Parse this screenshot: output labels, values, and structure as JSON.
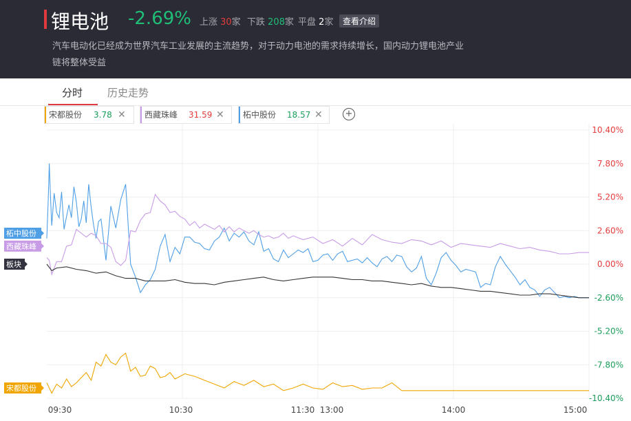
{
  "header": {
    "title": "锂电池",
    "change_pct": "-2.69%",
    "up_label": "上涨",
    "up_count": "30",
    "down_label": "下跌",
    "down_count": "208",
    "flat_label": "平盘",
    "flat_count": "2",
    "unit": "家",
    "intro_button": "查看介绍",
    "description": "汽车电动化已经成为世界汽车工业发展的主流趋势，对于动力电池的需求持续增长，国内动力锂电池产业链将整体受益"
  },
  "tabs": [
    {
      "label": "分时",
      "active": true
    },
    {
      "label": "历史走势",
      "active": false
    }
  ],
  "stocks": [
    {
      "name": "宋都股份",
      "value": "3.78",
      "color": "#f0a500",
      "value_color": "#1a9e5a"
    },
    {
      "name": "西藏珠峰",
      "value": "31.59",
      "color": "#c79be6",
      "value_color": "#e63b3b"
    },
    {
      "name": "柘中股份",
      "value": "18.57",
      "color": "#4f9fe6",
      "value_color": "#1a9e5a"
    }
  ],
  "add_icon": "plus-circle-icon",
  "close_icon": "close-icon",
  "chart_data": {
    "type": "line",
    "y_ticks": [
      "10.40%",
      "7.80%",
      "5.20%",
      "2.60%",
      "0.00%",
      "-2.60%",
      "-5.20%",
      "-7.80%",
      "-10.40%"
    ],
    "y_tick_colors": [
      "#e63b3b",
      "#e63b3b",
      "#e63b3b",
      "#e63b3b",
      "#e63b3b",
      "#1a9e5a",
      "#1a9e5a",
      "#1a9e5a",
      "#1a9e5a"
    ],
    "ylim": [
      -10.4,
      10.4
    ],
    "x_ticks": [
      "09:30",
      "10:30",
      "11:30",
      "13:00",
      "14:00",
      "15:00"
    ],
    "series": [
      {
        "name": "柘中股份",
        "color": "#4f9fe6",
        "x": [
          0,
          3,
          5,
          8,
          10,
          15,
          20,
          25,
          30,
          35,
          40,
          45,
          50,
          55,
          60,
          65,
          70,
          75,
          80,
          85,
          90,
          95,
          100,
          105,
          110,
          120,
          130,
          140,
          150,
          160,
          170,
          180,
          190,
          200,
          210,
          220,
          230,
          240,
          250,
          260,
          270,
          280,
          290,
          300,
          310,
          320,
          330,
          340,
          350,
          360,
          370,
          380,
          390,
          400,
          410,
          420,
          430,
          440,
          450,
          460,
          470,
          480,
          490,
          500,
          510,
          520,
          530,
          540,
          550,
          560,
          570,
          580,
          590,
          600,
          610,
          620,
          630,
          640,
          650,
          660,
          670,
          680,
          690,
          700,
          710,
          720,
          730,
          740,
          750,
          760,
          770,
          780,
          790,
          800,
          810,
          820,
          830,
          840,
          850,
          860,
          870,
          880,
          890,
          900,
          910,
          920,
          930,
          940,
          950,
          960,
          970,
          980,
          990,
          1000,
          1010,
          1020,
          1030,
          1040,
          1050,
          1060,
          1070,
          1080,
          1090,
          1100
        ],
        "y": [
          2.0,
          5.0,
          7.8,
          4.8,
          3.0,
          5.5,
          4.0,
          3.6,
          5.6,
          2.7,
          3.7,
          4.6,
          3.6,
          6.0,
          4.8,
          2.9,
          3.5,
          4.9,
          3.2,
          6.2,
          4.4,
          3.0,
          2.0,
          3.3,
          3.5,
          0.3,
          4.5,
          2.8,
          5.0,
          6.2,
          0.0,
          -1.0,
          -2.2,
          -1.6,
          -1.2,
          -0.4,
          1.4,
          2.3,
          0.2,
          1.3,
          0.8,
          2.1,
          2.1,
          1.7,
          1.6,
          1.2,
          1.1,
          1.8,
          2.1,
          2.8,
          1.8,
          2.4,
          2.1,
          2.5,
          1.8,
          1.5,
          2.5,
          1.0,
          1.2,
          0.4,
          0.2,
          1.1,
          0.5,
          0.8,
          1.1,
          0.9,
          1.2,
          0.2,
          0.3,
          0.7,
          0.8,
          0.3,
          0.8,
          1.0,
          0.2,
          0.3,
          0.4,
          0.1,
          0.5,
          0.1,
          -0.2,
          0.4,
          0.6,
          0.2,
          0.7,
          0.6,
          -0.2,
          -0.6,
          -0.3,
          0.6,
          -1.1,
          -1.6,
          -0.7,
          0.5,
          0.9,
          0.3,
          -0.1,
          -0.6,
          -0.4,
          -0.5,
          -0.6,
          -1.8,
          -1.5,
          -1.6,
          -0.2,
          0.6,
          0.0,
          -0.5,
          -1.0,
          -1.6,
          -1.2,
          -1.8,
          -2.0,
          -2.5,
          -2.0,
          -1.8,
          -2.2,
          -2.6,
          -2.5,
          -2.6,
          -2.5,
          -2.6,
          -2.6,
          -2.6
        ]
      },
      {
        "name": "西藏珠峰",
        "color": "#c79be6",
        "x": [
          0,
          5,
          10,
          20,
          30,
          40,
          50,
          60,
          70,
          80,
          90,
          100,
          110,
          120,
          130,
          140,
          150,
          160,
          170,
          180,
          190,
          200,
          210,
          220,
          230,
          240,
          250,
          260,
          270,
          280,
          290,
          300,
          310,
          320,
          330,
          340,
          350,
          360,
          370,
          380,
          390,
          400,
          410,
          420,
          430,
          440,
          450,
          460,
          470,
          480,
          490,
          500,
          520,
          540,
          560,
          580,
          600,
          620,
          640,
          660,
          680,
          700,
          720,
          740,
          760,
          780,
          800,
          820,
          840,
          860,
          880,
          900,
          920,
          940,
          960,
          980,
          1000,
          1020,
          1040,
          1060,
          1080,
          1100
        ],
        "y": [
          0.5,
          0.3,
          -0.8,
          0.2,
          0.2,
          1.4,
          1.5,
          2.7,
          2.4,
          2.1,
          2.4,
          2.2,
          1.6,
          1.6,
          1.3,
          0.2,
          -0.1,
          0.3,
          2.6,
          2.5,
          3.4,
          3.9,
          4.0,
          5.4,
          4.9,
          4.6,
          4.0,
          4.1,
          3.7,
          3.5,
          3.0,
          3.3,
          2.8,
          3.1,
          2.9,
          2.7,
          3.0,
          2.5,
          2.9,
          2.5,
          2.8,
          2.6,
          2.4,
          2.6,
          2.3,
          2.1,
          2.2,
          2.0,
          2.1,
          2.4,
          2.0,
          2.2,
          1.9,
          2.1,
          1.6,
          1.9,
          1.4,
          2.0,
          1.5,
          2.3,
          1.9,
          1.7,
          1.6,
          1.9,
          1.8,
          1.5,
          1.8,
          1.3,
          1.6,
          1.5,
          1.4,
          1.3,
          1.6,
          1.4,
          1.2,
          1.3,
          1.1,
          1.0,
          0.8,
          0.8,
          0.9,
          0.9
        ]
      },
      {
        "name": "板块",
        "color": "#333333",
        "x": [
          0,
          10,
          20,
          40,
          60,
          80,
          100,
          120,
          140,
          160,
          180,
          200,
          220,
          240,
          260,
          280,
          300,
          320,
          340,
          360,
          380,
          400,
          420,
          440,
          460,
          480,
          500,
          520,
          540,
          560,
          580,
          600,
          620,
          640,
          660,
          680,
          700,
          720,
          740,
          760,
          780,
          800,
          820,
          840,
          860,
          880,
          900,
          920,
          940,
          960,
          980,
          1000,
          1020,
          1040,
          1060,
          1080,
          1100
        ],
        "y": [
          0.0,
          -0.5,
          -0.3,
          -0.2,
          -0.4,
          -0.5,
          -0.7,
          -0.6,
          -0.9,
          -1.1,
          -1.1,
          -1.3,
          -1.3,
          -1.3,
          -1.2,
          -1.4,
          -1.5,
          -1.5,
          -1.6,
          -1.4,
          -1.3,
          -1.2,
          -1.1,
          -1.0,
          -1.2,
          -1.3,
          -1.2,
          -1.1,
          -1.0,
          -1.0,
          -1.0,
          -1.1,
          -1.2,
          -1.2,
          -1.3,
          -1.3,
          -1.4,
          -1.5,
          -1.6,
          -1.5,
          -1.7,
          -1.8,
          -1.8,
          -1.9,
          -2.0,
          -2.1,
          -2.1,
          -2.2,
          -2.3,
          -2.4,
          -2.4,
          -2.3,
          -2.3,
          -2.4,
          -2.5,
          -2.6,
          -2.6
        ]
      },
      {
        "name": "宋都股份",
        "color": "#f0a500",
        "x": [
          0,
          10,
          20,
          30,
          40,
          50,
          60,
          70,
          80,
          90,
          100,
          110,
          120,
          130,
          140,
          150,
          160,
          170,
          180,
          190,
          200,
          210,
          220,
          230,
          240,
          250,
          260,
          280,
          300,
          320,
          340,
          360,
          380,
          400,
          420,
          440,
          460,
          480,
          500,
          520,
          540,
          560,
          580,
          600,
          620,
          640,
          660,
          680,
          700,
          720,
          740,
          760,
          780,
          800,
          820,
          840,
          860,
          880,
          900,
          940,
          980,
          1020,
          1060,
          1100
        ],
        "y": [
          -9.2,
          -10.0,
          -9.3,
          -9.6,
          -8.9,
          -9.5,
          -9.2,
          -8.8,
          -8.4,
          -9.0,
          -7.6,
          -7.9,
          -7.0,
          -7.6,
          -7.8,
          -7.2,
          -6.9,
          -8.3,
          -8.0,
          -8.7,
          -8.6,
          -7.9,
          -8.1,
          -8.8,
          -8.7,
          -8.4,
          -8.9,
          -8.5,
          -8.7,
          -9.0,
          -9.3,
          -9.6,
          -9.1,
          -9.4,
          -9.0,
          -9.5,
          -9.3,
          -9.8,
          -9.6,
          -9.3,
          -9.6,
          -9.7,
          -9.2,
          -9.5,
          -9.4,
          -9.7,
          -9.6,
          -9.6,
          -9.2,
          -9.8,
          -9.8,
          -9.8,
          -9.8,
          -9.8,
          -9.8,
          -9.8,
          -9.8,
          -9.8,
          -9.8,
          -9.8,
          -9.8,
          -9.8,
          -9.8,
          -9.8
        ]
      }
    ],
    "left_labels": [
      {
        "name": "柘中股份",
        "color": "#4f9fe6",
        "y": 2.4
      },
      {
        "name": "西藏珠峰",
        "color": "#c79be6",
        "y": 1.4
      },
      {
        "name": "板块",
        "color": "#333340",
        "y": 0.0
      },
      {
        "name": "宋都股份",
        "color": "#f0a500",
        "y": -9.6
      }
    ]
  }
}
